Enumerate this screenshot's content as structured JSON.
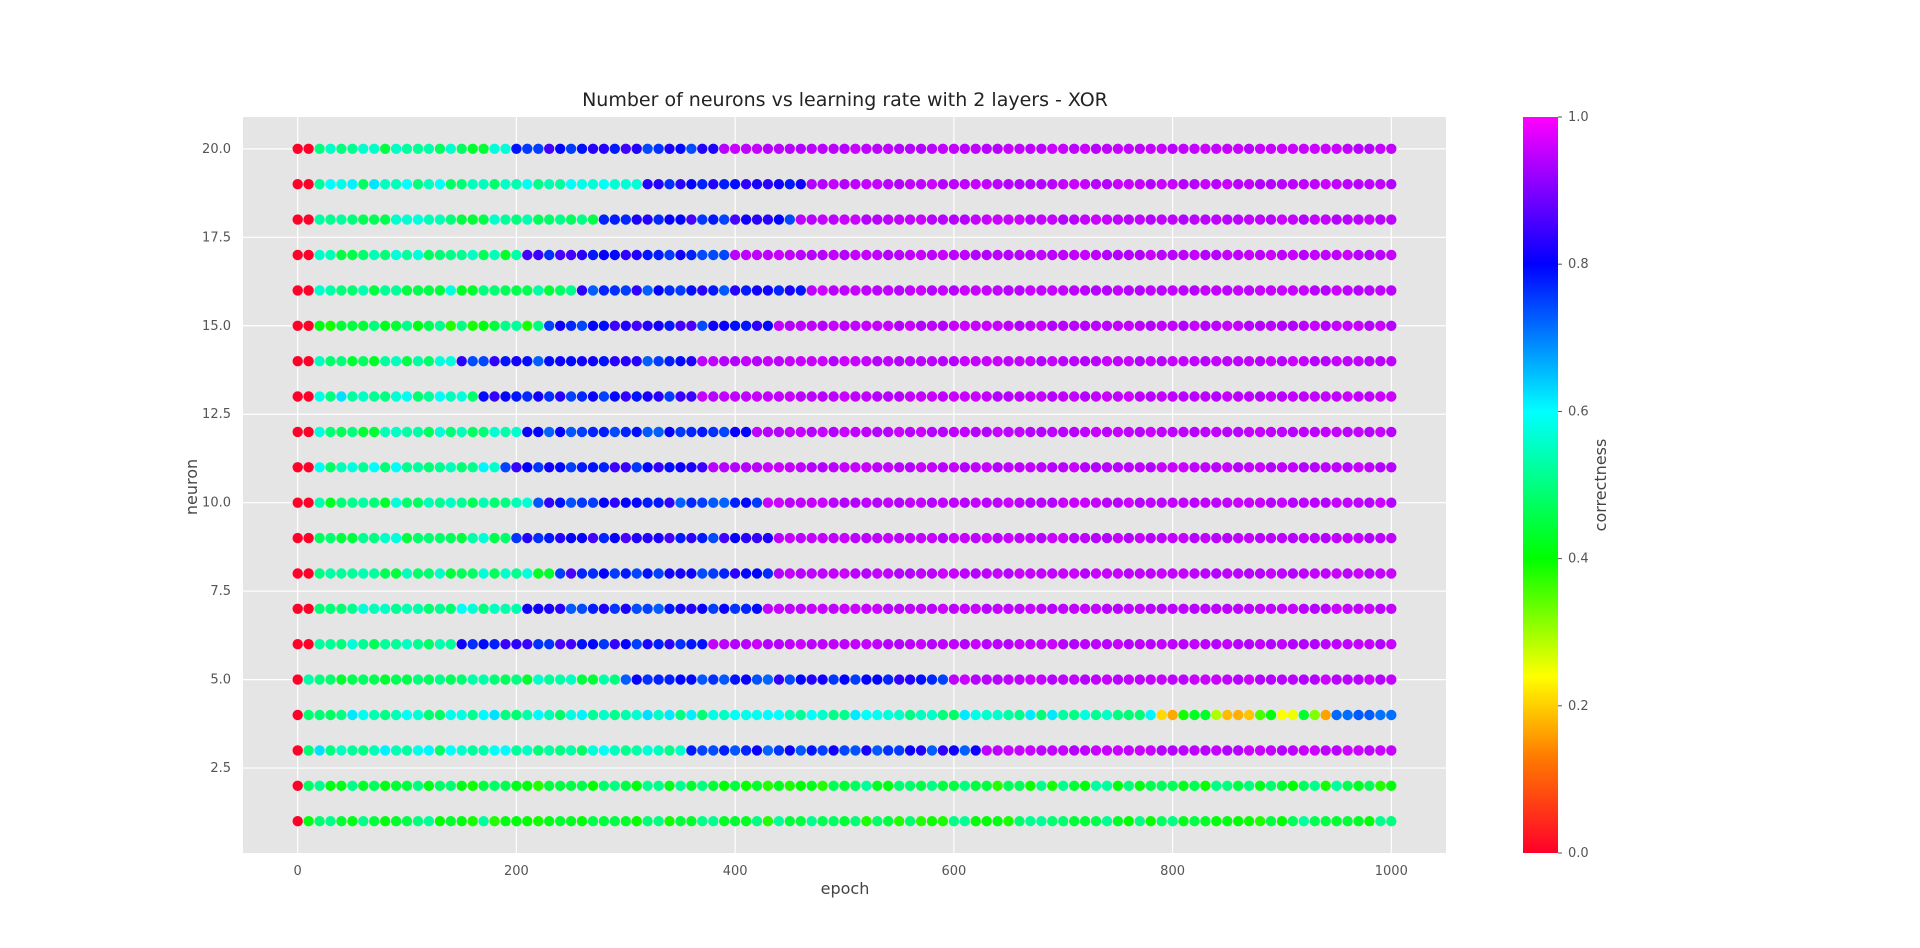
{
  "chart_data": {
    "type": "scatter",
    "title": "Number of neurons vs learning rate with 2 layers - XOR",
    "xlabel": "epoch",
    "ylabel": "neuron",
    "xlim": [
      -50,
      1050
    ],
    "ylim": [
      0.1,
      20.9
    ],
    "xticks": [
      0,
      200,
      400,
      600,
      800,
      1000
    ],
    "xtick_labels": [
      "0",
      "200",
      "400",
      "600",
      "800",
      "1000"
    ],
    "yticks": [
      2.5,
      5.0,
      7.5,
      10.0,
      12.5,
      15.0,
      17.5,
      20.0
    ],
    "ytick_labels": [
      "2.5",
      "5.0",
      "7.5",
      "10.0",
      "12.5",
      "15.0",
      "17.5",
      "20.0"
    ],
    "grid": true,
    "background": "#e5e5e5",
    "x_epochs": {
      "start": 0,
      "stop": 1000,
      "step": 10
    },
    "neurons": [
      1,
      2,
      3,
      4,
      5,
      6,
      7,
      8,
      9,
      10,
      11,
      12,
      13,
      14,
      15,
      16,
      17,
      18,
      19,
      20
    ],
    "correctness_profile": [
      {
        "neuron": 1,
        "first_value": 0.0,
        "early_value": 0.45,
        "late_start_epoch": null,
        "late_value": null,
        "mid_value": 0.5
      },
      {
        "neuron": 2,
        "first_value": 0.0,
        "early_value": 0.45,
        "late_start_epoch": null,
        "late_value": null,
        "mid_value": 0.5
      },
      {
        "neuron": 3,
        "first_value": 0.0,
        "early_value": 0.55,
        "mid_start_epoch": 360,
        "mid_value": 0.78,
        "late_start_epoch": 630,
        "late_value": 0.95
      },
      {
        "neuron": 4,
        "first_value": 0.0,
        "early_value": 0.55,
        "mid_start_epoch": 790,
        "mid_value": 0.25,
        "late_start_epoch": 950,
        "late_value": 0.72
      },
      {
        "neuron": 5,
        "first_value": 0.0,
        "early_value": 0.5,
        "mid_start_epoch": 300,
        "mid_value": 0.78,
        "late_start_epoch": 600,
        "late_value": 0.95
      },
      {
        "neuron": 6,
        "first_value": 0.0,
        "early_value": 0.5,
        "mid_start_epoch": 150,
        "mid_value": 0.8,
        "late_start_epoch": 380,
        "late_value": 0.95
      },
      {
        "neuron": 7,
        "first_value": 0.0,
        "early_value": 0.55,
        "mid_start_epoch": 210,
        "mid_value": 0.78,
        "late_start_epoch": 430,
        "late_value": 0.95
      },
      {
        "neuron": 8,
        "first_value": 0.0,
        "early_value": 0.5,
        "mid_start_epoch": 240,
        "mid_value": 0.8,
        "late_start_epoch": 440,
        "late_value": 0.95
      },
      {
        "neuron": 9,
        "first_value": 0.0,
        "early_value": 0.5,
        "mid_start_epoch": 200,
        "mid_value": 0.8,
        "late_start_epoch": 440,
        "late_value": 0.95
      },
      {
        "neuron": 10,
        "first_value": 0.0,
        "early_value": 0.5,
        "mid_start_epoch": 220,
        "mid_value": 0.78,
        "late_start_epoch": 430,
        "late_value": 0.95
      },
      {
        "neuron": 11,
        "first_value": 0.0,
        "early_value": 0.55,
        "mid_start_epoch": 190,
        "mid_value": 0.8,
        "late_start_epoch": 380,
        "late_value": 0.95
      },
      {
        "neuron": 12,
        "first_value": 0.0,
        "early_value": 0.5,
        "mid_start_epoch": 210,
        "mid_value": 0.78,
        "late_start_epoch": 420,
        "late_value": 0.95
      },
      {
        "neuron": 13,
        "first_value": 0.0,
        "early_value": 0.55,
        "mid_start_epoch": 170,
        "mid_value": 0.8,
        "late_start_epoch": 370,
        "late_value": 0.95
      },
      {
        "neuron": 14,
        "first_value": 0.0,
        "early_value": 0.5,
        "mid_start_epoch": 150,
        "mid_value": 0.78,
        "late_start_epoch": 370,
        "late_value": 0.95
      },
      {
        "neuron": 15,
        "first_value": 0.0,
        "early_value": 0.45,
        "mid_start_epoch": 230,
        "mid_value": 0.8,
        "late_start_epoch": 440,
        "late_value": 0.95
      },
      {
        "neuron": 16,
        "first_value": 0.0,
        "early_value": 0.5,
        "mid_start_epoch": 260,
        "mid_value": 0.78,
        "late_start_epoch": 470,
        "late_value": 0.95
      },
      {
        "neuron": 17,
        "first_value": 0.0,
        "early_value": 0.5,
        "mid_start_epoch": 210,
        "mid_value": 0.8,
        "late_start_epoch": 400,
        "late_value": 0.95
      },
      {
        "neuron": 18,
        "first_value": 0.0,
        "early_value": 0.5,
        "mid_start_epoch": 280,
        "mid_value": 0.8,
        "late_start_epoch": 460,
        "late_value": 0.95
      },
      {
        "neuron": 19,
        "first_value": 0.0,
        "early_value": 0.55,
        "mid_start_epoch": 320,
        "mid_value": 0.8,
        "late_start_epoch": 470,
        "late_value": 0.95
      },
      {
        "neuron": 20,
        "first_value": 0.0,
        "early_value": 0.5,
        "mid_start_epoch": 200,
        "mid_value": 0.8,
        "late_start_epoch": 390,
        "late_value": 0.95
      }
    ],
    "colorbar": {
      "label": "correctness",
      "colormap": "gist_rainbow_r",
      "range": [
        0.0,
        1.0
      ],
      "ticks": [
        0.0,
        0.2,
        0.4,
        0.6,
        0.8,
        1.0
      ],
      "tick_labels": [
        "0.0",
        "0.2",
        "0.4",
        "0.6",
        "0.8",
        "1.0"
      ]
    }
  }
}
